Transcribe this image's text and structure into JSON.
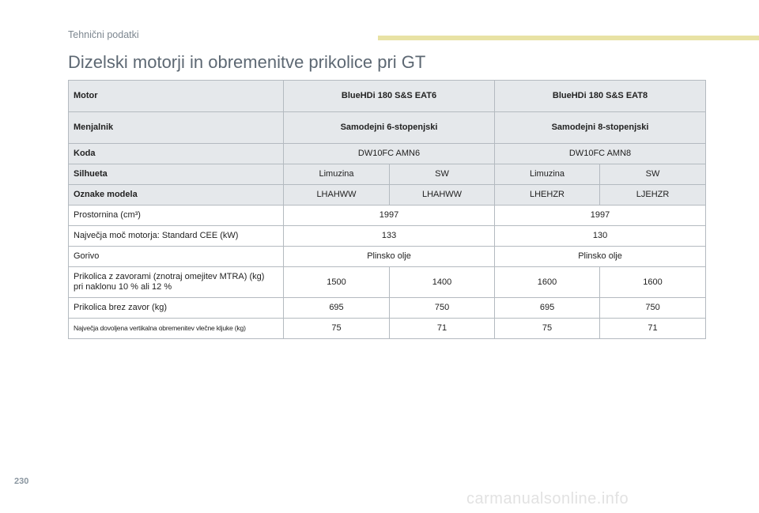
{
  "header": {
    "section": "Tehnični podatki",
    "title": "Dizelski motorji in obremenitve prikolice pri GT"
  },
  "table": {
    "motor": {
      "label": "Motor",
      "values": [
        "BlueHDi 180 S&S EAT6",
        "BlueHDi 180 S&S EAT8"
      ]
    },
    "menjalnik": {
      "label": "Menjalnik",
      "values": [
        "Samodejni 6-stopenjski",
        "Samodejni 8-stopenjski"
      ]
    },
    "koda": {
      "label": "Koda",
      "values": [
        "DW10FC AMN6",
        "DW10FC AMN8"
      ]
    },
    "silhueta": {
      "label": "Silhueta",
      "values": [
        "Limuzina",
        "SW",
        "Limuzina",
        "SW"
      ]
    },
    "oznake": {
      "label": "Oznake modela",
      "values": [
        "LHAHWW",
        "LHAHWW",
        "LHEHZR",
        "LJEHZR"
      ]
    },
    "prostornina": {
      "label": "Prostornina (cm³)",
      "values": [
        "1997",
        "1997"
      ]
    },
    "moc": {
      "label": "Največja moč motorja: Standard CEE (kW)",
      "values": [
        "133",
        "130"
      ]
    },
    "gorivo": {
      "label": "Gorivo",
      "values": [
        "Plinsko olje",
        "Plinsko olje"
      ]
    },
    "prikolica_zavore": {
      "label_line1": "Prikolica z zavorami (znotraj omejitev MTRA) (kg)",
      "label_line2": "pri naklonu 10 % ali 12 %",
      "values": [
        "1500",
        "1400",
        "1600",
        "1600"
      ]
    },
    "prikolica_brez": {
      "label": "Prikolica brez zavor (kg)",
      "values": [
        "695",
        "750",
        "695",
        "750"
      ]
    },
    "vertikalna": {
      "label": "Največja dovoljena vertikalna obremenitev vlečne kljuke (kg)",
      "values": [
        "75",
        "71",
        "75",
        "71"
      ]
    }
  },
  "footer": {
    "page_number": "230",
    "watermark": "carmanualsonline.info"
  }
}
